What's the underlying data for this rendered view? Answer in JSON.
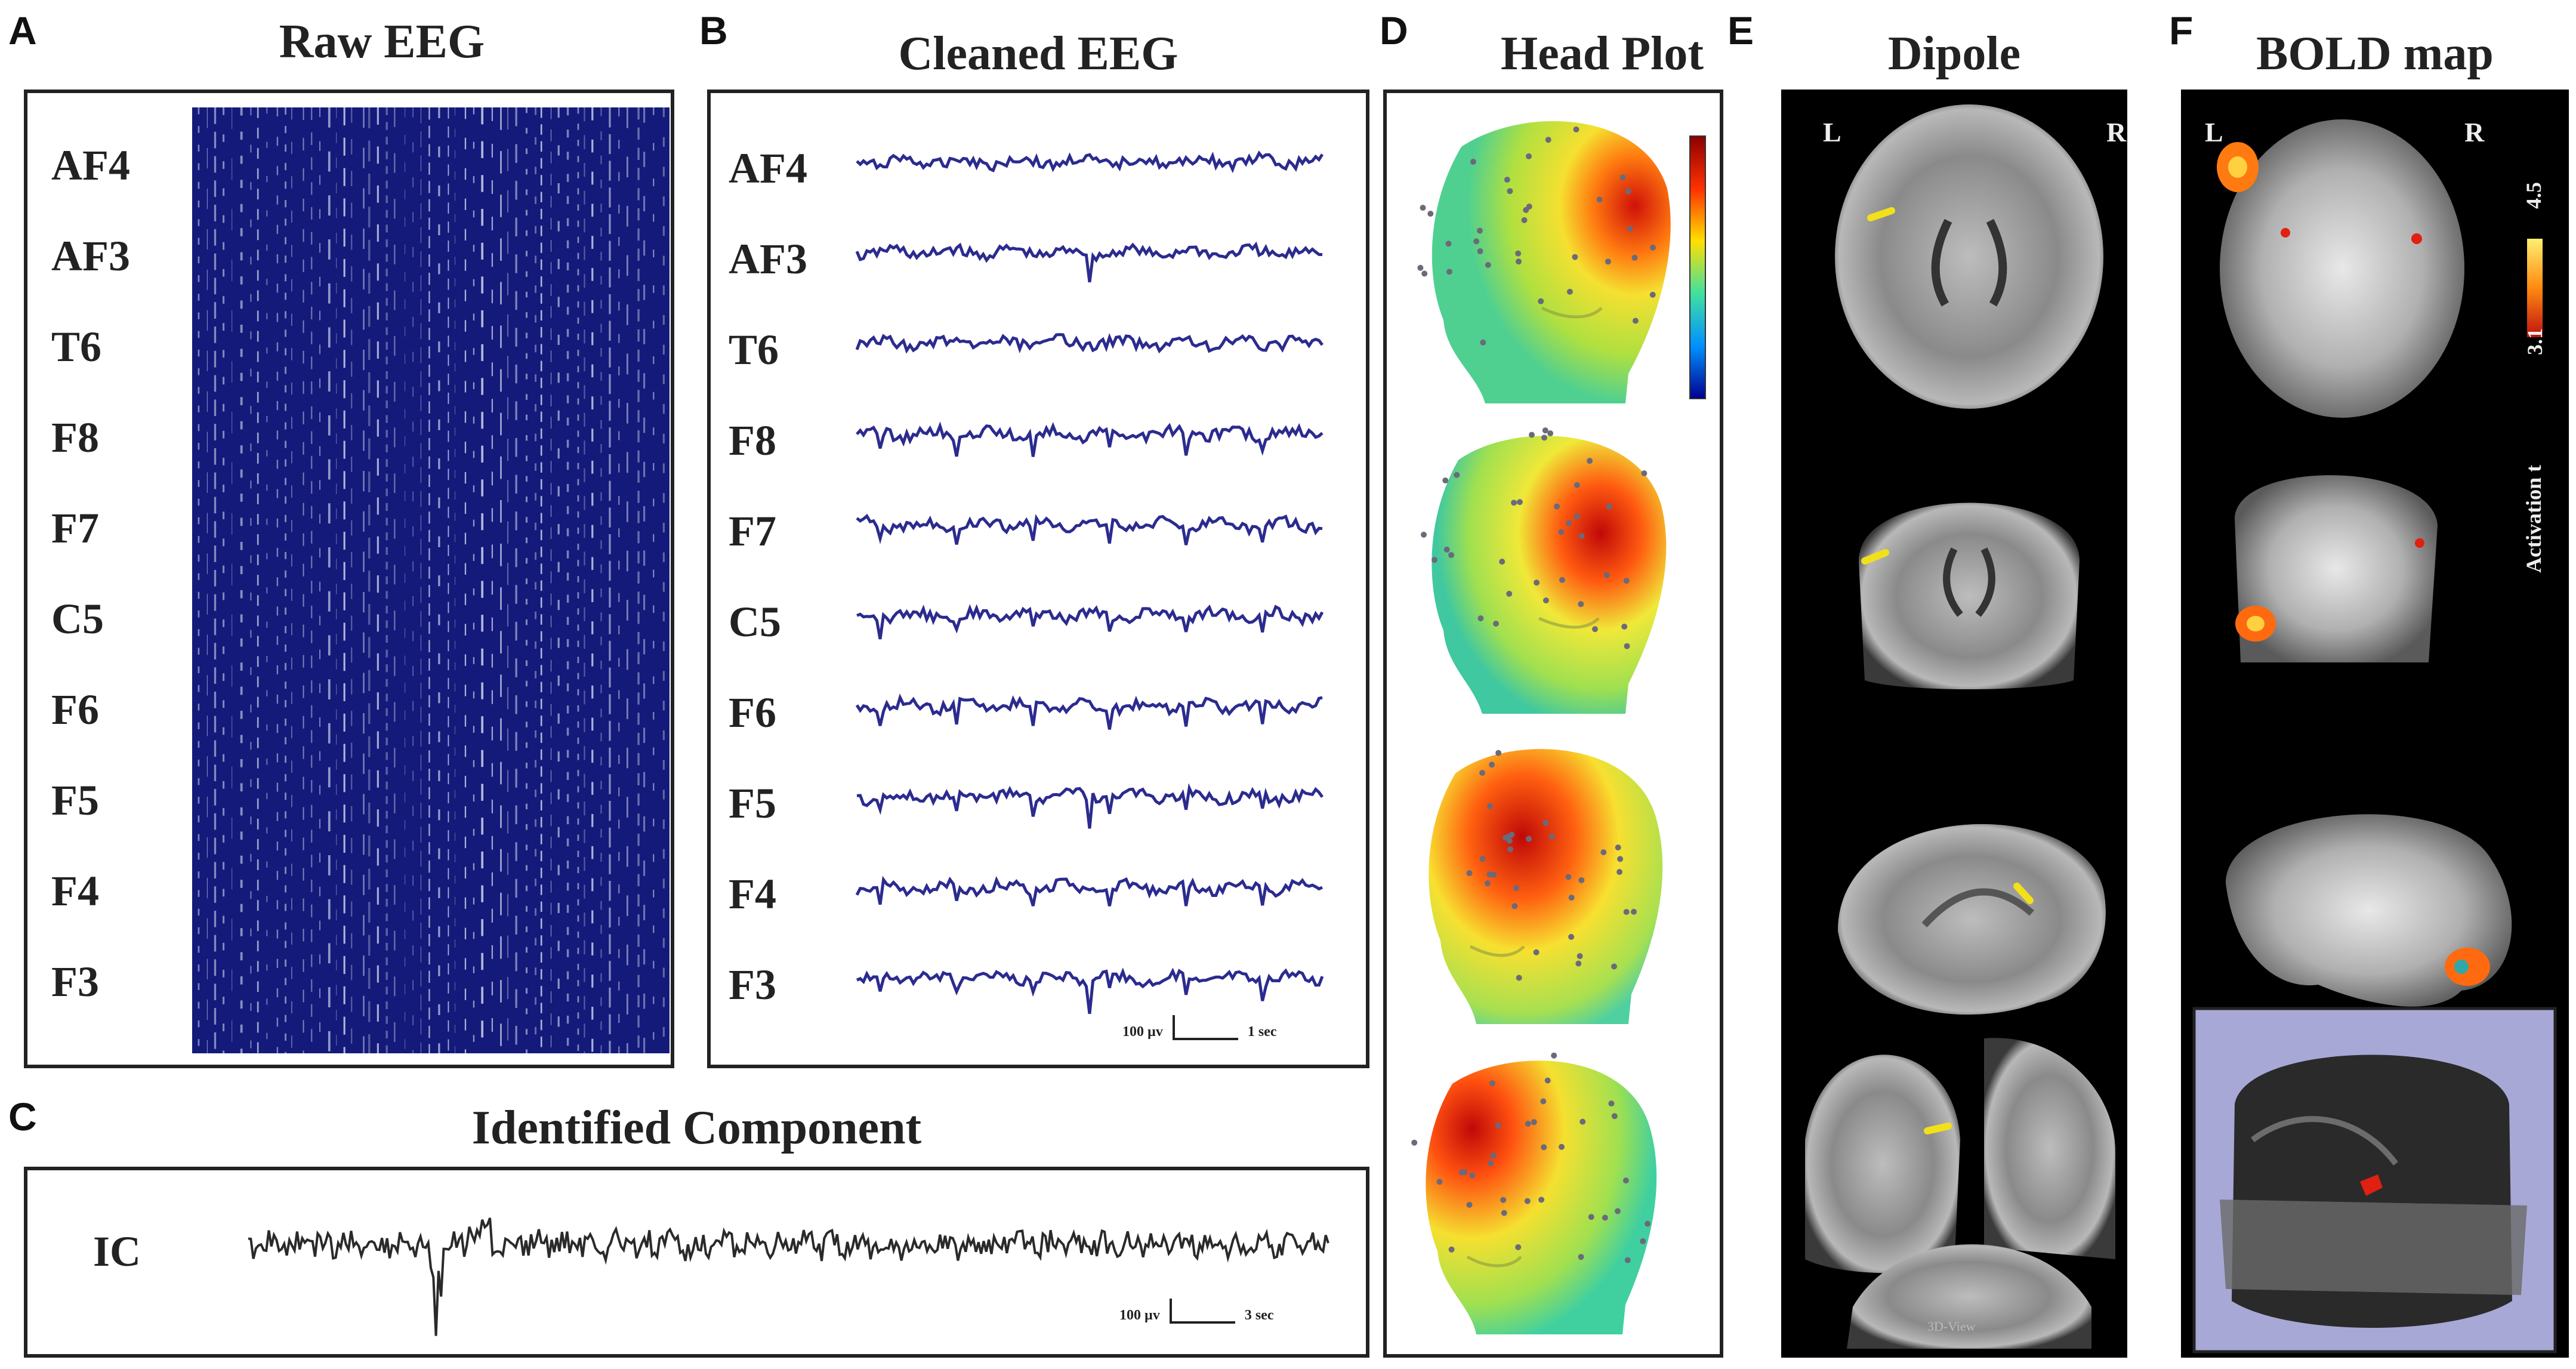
{
  "panels": {
    "A": {
      "letter": "A",
      "title": "Raw EEG"
    },
    "B": {
      "letter": "B",
      "title": "Cleaned EEG",
      "scale_amp": "100 µv",
      "scale_time": "1 sec"
    },
    "C": {
      "letter": "C",
      "title": "Identified Component",
      "channel": "IC",
      "scale_amp": "100 µv",
      "scale_time": "3 sec"
    },
    "D": {
      "letter": "D",
      "title": "Head Plot"
    },
    "E": {
      "letter": "E",
      "title": "Dipole",
      "left": "L",
      "right": "R",
      "view_label": "3D-View"
    },
    "F": {
      "letter": "F",
      "title": "BOLD map",
      "left": "L",
      "right": "R",
      "colorbar_max": "4.5",
      "colorbar_min": "3.1",
      "colorbar_label": "Activation t"
    }
  },
  "channels": [
    "AF4",
    "AF3",
    "T6",
    "F8",
    "F7",
    "C5",
    "F6",
    "F5",
    "F4",
    "F3"
  ],
  "colors": {
    "eeg_trace": "#2b2b8f",
    "raw_bg": "#141a7a",
    "component_trace": "#2a2a2a",
    "accent_red": "#e02010",
    "dipole_yellow": "#f2e01a"
  }
}
